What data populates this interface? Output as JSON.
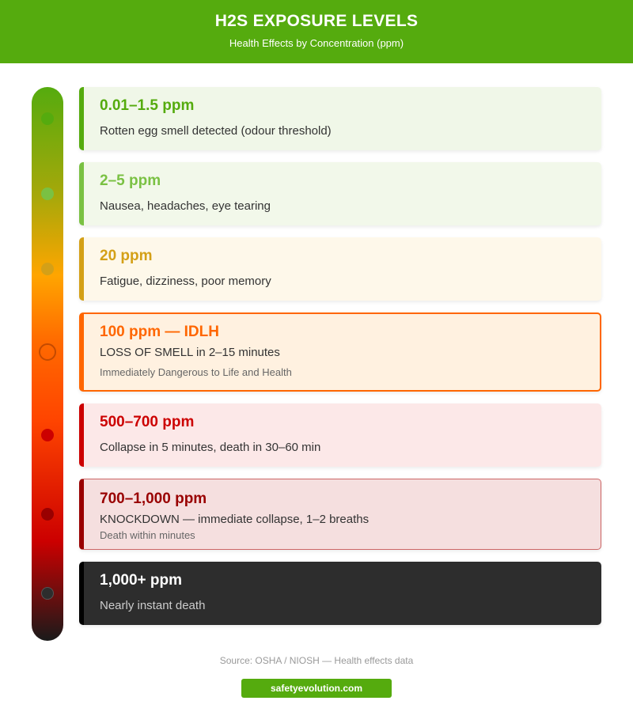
{
  "header": {
    "title": "H2S EXPOSURE LEVELS",
    "subtitle": "Health Effects by Concentration (ppm)"
  },
  "levels": [
    {
      "range": "0.01–1.5 ppm",
      "effect": "Rotten egg smell detected (odour threshold)",
      "color": "#55ab0e",
      "bg": "#f0f7e8"
    },
    {
      "range": "2–5 ppm",
      "effect": "Nausea, headaches, eye tearing",
      "color": "#7ac143",
      "bg": "#f2f8ea"
    },
    {
      "range": "20 ppm",
      "effect": "Fatigue, dizziness, poor memory",
      "color": "#d4a017",
      "bg": "#fef8ea"
    },
    {
      "range": "100 ppm — IDLH",
      "effect": "LOSS OF SMELL in 2–15 minutes",
      "note": "Immediately Dangerous to Life and Health",
      "color": "#ff6600",
      "bg": "#fff1e0"
    },
    {
      "range": "500–700 ppm",
      "effect": "Collapse in 5 minutes, death in 30–60 min",
      "color": "#cc0000",
      "bg": "#fce8e8"
    },
    {
      "range": "700–1,000 ppm",
      "effect": "KNOCKDOWN — immediate collapse, 1–2 breaths",
      "note": "Death within minutes",
      "color": "#990000",
      "bg": "#f5dfdf"
    },
    {
      "range": "1,000+ ppm",
      "effect": "Nearly instant death",
      "color": "#000000",
      "bg": "#2d2d2d"
    }
  ],
  "footer": {
    "source": "Source: OSHA / NIOSH — Health effects data",
    "site": "safetyevolution.com"
  }
}
